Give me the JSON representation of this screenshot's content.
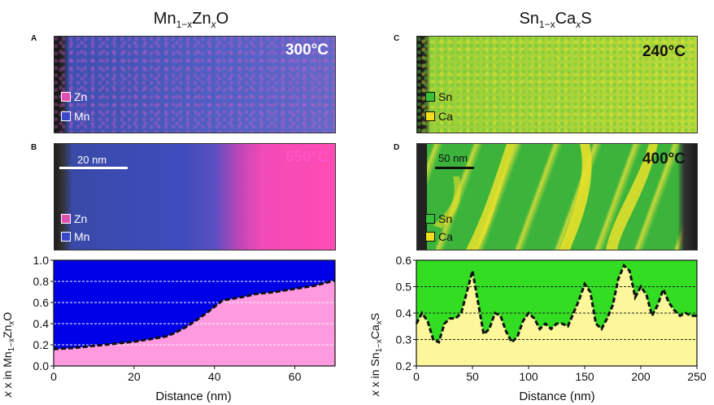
{
  "left_column": {
    "title_base": "Mn",
    "title_sub1": "1−x",
    "title_mid": "Zn",
    "title_sub2": "x",
    "title_end": "O"
  },
  "right_column": {
    "title_base": "Sn",
    "title_sub1": "1−x",
    "title_mid": "Ca",
    "title_sub2": "x",
    "title_end": "S"
  },
  "panels": {
    "A": {
      "letter": "A",
      "temperature": "300°C",
      "legend": [
        "Zn",
        "Mn"
      ]
    },
    "B": {
      "letter": "B",
      "temperature": "550°C",
      "legend": [
        "Zn",
        "Mn"
      ],
      "scale_bar": "20 nm"
    },
    "C": {
      "letter": "C",
      "temperature": "240°C",
      "legend": [
        "Sn",
        "Ca"
      ]
    },
    "D": {
      "letter": "D",
      "temperature": "400°C",
      "legend": [
        "Sn",
        "Ca"
      ],
      "scale_bar": "50 nm"
    }
  },
  "colors": {
    "zn": "#f050b8",
    "mn": "#3848c8",
    "sn": "#38c038",
    "ca": "#f0e020",
    "left_top_fill": "#0000e8",
    "left_bottom_fill": "#ff9ae0",
    "right_top_fill": "#33dd22",
    "right_bottom_fill": "#fbf79a"
  },
  "chart_data": [
    {
      "type": "area",
      "xlabel": "Distance (nm)",
      "ylabel_prefix": "x in Mn",
      "ylabel_sub1": "1−x",
      "ylabel_mid": "Zn",
      "ylabel_sub2": "x",
      "ylabel_end": "O",
      "xlim": [
        0,
        70
      ],
      "ylim": [
        0.0,
        1.0
      ],
      "xticks": [
        0,
        20,
        40,
        60
      ],
      "yticks": [
        0.0,
        0.2,
        0.4,
        0.6,
        0.8,
        1.0
      ],
      "xtick_labels": [
        "0",
        "20",
        "40",
        "60"
      ],
      "ytick_labels": [
        "0.0",
        "0.2",
        "0.4",
        "0.6",
        "0.8",
        "1.0"
      ],
      "gridlines_y": [
        0.2,
        0.4,
        0.6,
        0.8
      ],
      "x": [
        0,
        5,
        10,
        15,
        20,
        25,
        28,
        30,
        33,
        35,
        38,
        40,
        42,
        45,
        48,
        50,
        55,
        60,
        65,
        70
      ],
      "y": [
        0.16,
        0.17,
        0.19,
        0.21,
        0.23,
        0.26,
        0.28,
        0.31,
        0.37,
        0.42,
        0.5,
        0.56,
        0.62,
        0.64,
        0.66,
        0.68,
        0.7,
        0.73,
        0.76,
        0.81
      ]
    },
    {
      "type": "area",
      "xlabel": "Distance (nm)",
      "ylabel_prefix": "x in Sn",
      "ylabel_sub1": "1−x",
      "ylabel_mid": "Ca",
      "ylabel_sub2": "x",
      "ylabel_end": "S",
      "xlim": [
        0,
        250
      ],
      "ylim": [
        0.2,
        0.6
      ],
      "xticks": [
        0,
        50,
        100,
        150,
        200,
        250
      ],
      "yticks": [
        0.2,
        0.3,
        0.4,
        0.5,
        0.6
      ],
      "xtick_labels": [
        "0",
        "50",
        "100",
        "150",
        "200",
        "250"
      ],
      "ytick_labels": [
        "0.2",
        "0.3",
        "0.4",
        "0.5",
        "0.6"
      ],
      "gridlines_y": [
        0.3,
        0.4,
        0.5
      ],
      "x": [
        0,
        5,
        10,
        15,
        20,
        25,
        30,
        35,
        40,
        45,
        50,
        55,
        60,
        65,
        70,
        75,
        80,
        85,
        90,
        95,
        100,
        105,
        110,
        115,
        120,
        125,
        130,
        135,
        140,
        145,
        150,
        155,
        160,
        165,
        170,
        175,
        180,
        185,
        190,
        195,
        200,
        205,
        210,
        215,
        220,
        225,
        230,
        235,
        240,
        245,
        250
      ],
      "y": [
        0.36,
        0.4,
        0.37,
        0.3,
        0.29,
        0.36,
        0.38,
        0.38,
        0.4,
        0.48,
        0.56,
        0.44,
        0.32,
        0.34,
        0.4,
        0.39,
        0.33,
        0.29,
        0.31,
        0.37,
        0.4,
        0.38,
        0.34,
        0.36,
        0.34,
        0.36,
        0.36,
        0.35,
        0.4,
        0.45,
        0.51,
        0.48,
        0.36,
        0.34,
        0.38,
        0.43,
        0.53,
        0.58,
        0.56,
        0.46,
        0.5,
        0.47,
        0.39,
        0.43,
        0.49,
        0.44,
        0.41,
        0.39,
        0.4,
        0.39,
        0.39
      ]
    }
  ]
}
